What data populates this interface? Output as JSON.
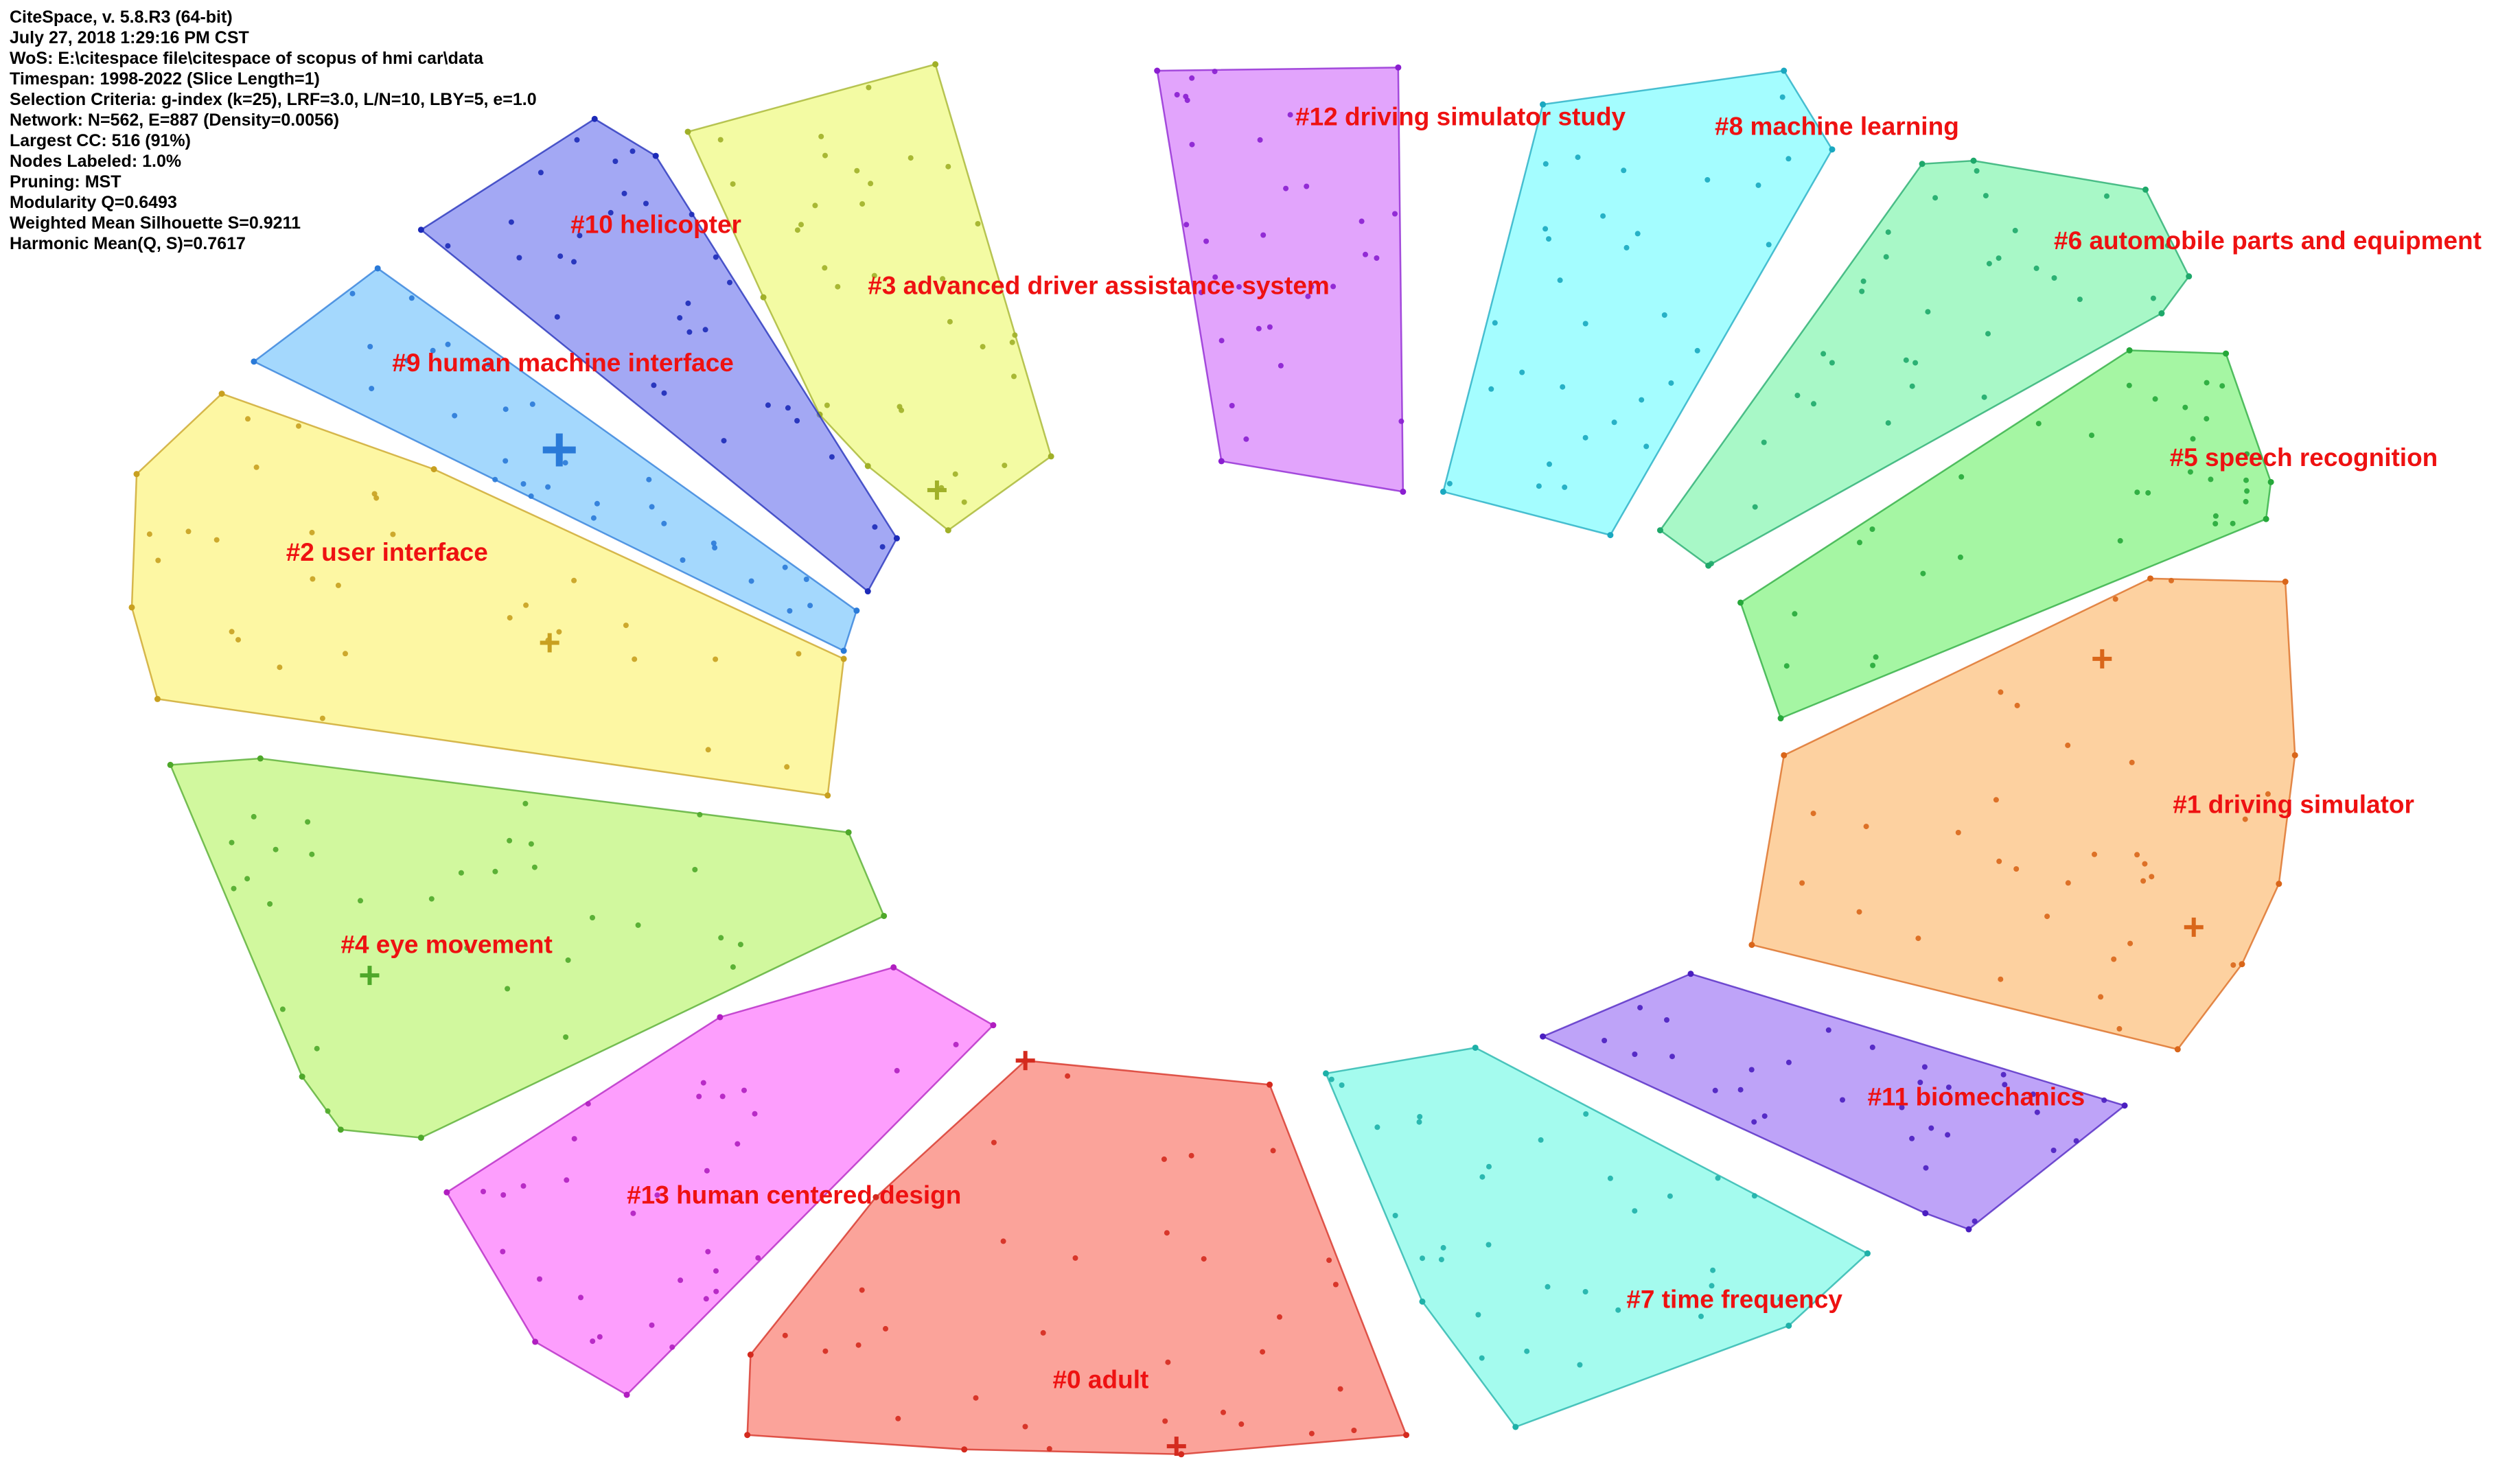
{
  "info_lines": [
    "CiteSpace, v. 5.8.R3 (64-bit)",
    "July 27, 2018 1:29:16 PM CST",
    "WoS: E:\\citespace file\\citespace of scopus of hmi car\\data",
    "Timespan: 1998-2022 (Slice Length=1)",
    "Selection Criteria: g-index (k=25), LRF=3.0, L/N=10, LBY=5, e=1.0",
    "Network: N=562, E=887 (Density=0.0056)",
    "Largest CC: 516 (91%)",
    "Nodes Labeled: 1.0%",
    "Pruning: MST",
    "Modularity Q=0.6493",
    "Weighted Mean Silhouette S=0.9211",
    "Harmonic Mean(Q, S)=0.7617"
  ],
  "clusters": [
    {
      "id": 0,
      "label": "#0 adult",
      "fill": "#f96a5c",
      "node": "#d42a1e"
    },
    {
      "id": 1,
      "label": "#1 driving simulator",
      "fill": "#fbb566",
      "node": "#d9661a"
    },
    {
      "id": 2,
      "label": "#2 user interface",
      "fill": "#fbf26a",
      "node": "#c8a020"
    },
    {
      "id": 3,
      "label": "#3 advanced driver assistance system",
      "fill": "#ecf86a",
      "node": "#a0b028"
    },
    {
      "id": 4,
      "label": "#4 eye movement",
      "fill": "#b4f462",
      "node": "#4ea82a"
    },
    {
      "id": 5,
      "label": "#5 speech recognition",
      "fill": "#6ef06a",
      "node": "#26a83a"
    },
    {
      "id": 6,
      "label": "#6 automobile parts and equipment",
      "fill": "#72f4a4",
      "node": "#1ea86a"
    },
    {
      "id": 7,
      "label": "#7 time frequency",
      "fill": "#6cf8e4",
      "node": "#1eb0a8"
    },
    {
      "id": 8,
      "label": "#8 machine learning",
      "fill": "#6cfcff",
      "node": "#1aa8c0"
    },
    {
      "id": 9,
      "label": "#9 human machine interface",
      "fill": "#6cc0fc",
      "node": "#2a7ad8"
    },
    {
      "id": 10,
      "label": "#10 helicopter",
      "fill": "#6a72ee",
      "node": "#1c2ab8"
    },
    {
      "id": 11,
      "label": "#11 biomechanics",
      "fill": "#966af4",
      "node": "#4a1ec0"
    },
    {
      "id": 12,
      "label": "#12 driving simulator study",
      "fill": "#d06cfa",
      "node": "#8a1ed0"
    },
    {
      "id": 13,
      "label": "#13 human centered design",
      "fill": "#fc62fc",
      "node": "#b01ec0"
    }
  ]
}
